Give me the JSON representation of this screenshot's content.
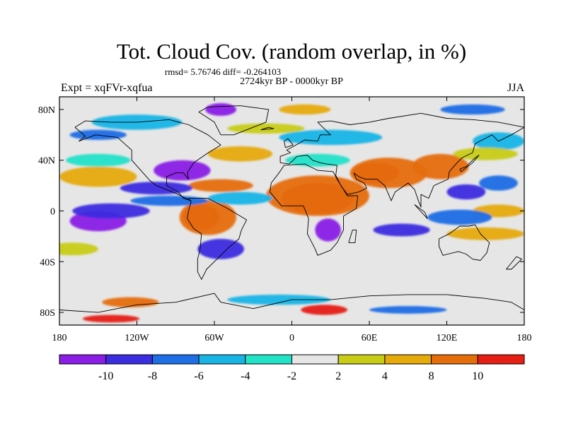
{
  "title": "Tot. Cloud Cov. (random overlap, in %)",
  "stats_line": "rmsd= 5.76746 diff= -0.264103",
  "experiment_label": "Expt = xqFVr-xqfua",
  "period_label": "2724kyr BP - 0000kyr BP",
  "season_label": "JJA",
  "map": {
    "lon_range": [
      -180,
      180
    ],
    "lat_range": [
      -90,
      90
    ],
    "lon_ticks": [
      {
        "value": -180,
        "label": "180"
      },
      {
        "value": -120,
        "label": "120W"
      },
      {
        "value": -60,
        "label": "60W"
      },
      {
        "value": 0,
        "label": "0"
      },
      {
        "value": 60,
        "label": "60E"
      },
      {
        "value": 120,
        "label": "120E"
      },
      {
        "value": 180,
        "label": "180"
      }
    ],
    "lat_ticks": [
      {
        "value": 80,
        "label": "80N"
      },
      {
        "value": 40,
        "label": "40N"
      },
      {
        "value": 0,
        "label": "0"
      },
      {
        "value": -40,
        "label": "40S"
      },
      {
        "value": -80,
        "label": "80S"
      }
    ],
    "background_color": "#e6e6e6"
  },
  "colorbar": {
    "boxes": [
      {
        "color": "#8a1ee6"
      },
      {
        "color": "#3b2de0"
      },
      {
        "color": "#1e6ee6"
      },
      {
        "color": "#19b4e6"
      },
      {
        "color": "#22e2c8"
      },
      {
        "color": "#e6e6e6"
      },
      {
        "color": "#c8cc14"
      },
      {
        "color": "#e6aa0a"
      },
      {
        "color": "#e66e0a"
      },
      {
        "color": "#e61e14"
      }
    ],
    "labels": [
      "-10",
      "-8",
      "-6",
      "-4",
      "-2",
      "2",
      "4",
      "8",
      "10"
    ]
  },
  "anomaly_regions": [
    {
      "level": 10,
      "lon": 20,
      "lat": 10,
      "rlon": 28,
      "rlat": 12
    },
    {
      "level": 8,
      "lon": 20,
      "lat": 12,
      "rlon": 40,
      "rlat": 16
    },
    {
      "level": 10,
      "lon": 65,
      "lat": 30,
      "rlon": 18,
      "rlat": 8
    },
    {
      "level": 8,
      "lon": 75,
      "lat": 30,
      "rlon": 30,
      "rlat": 12
    },
    {
      "level": 8,
      "lon": 115,
      "lat": 35,
      "rlon": 22,
      "rlat": 10
    },
    {
      "level": 10,
      "lon": -70,
      "lat": -5,
      "rlon": 14,
      "rlat": 10
    },
    {
      "level": 8,
      "lon": -65,
      "lat": -5,
      "rlon": 22,
      "rlat": 14
    },
    {
      "level": 8,
      "lon": -55,
      "lat": 20,
      "rlon": 25,
      "rlat": 5
    },
    {
      "level": 4,
      "lon": -150,
      "lat": 27,
      "rlon": 30,
      "rlat": 8
    },
    {
      "level": 4,
      "lon": -40,
      "lat": 45,
      "rlon": 25,
      "rlat": 6
    },
    {
      "level": 4,
      "lon": 160,
      "lat": 0,
      "rlon": 20,
      "rlat": 5
    },
    {
      "level": 4,
      "lon": 150,
      "lat": -18,
      "rlon": 30,
      "rlat": 5
    },
    {
      "level": 4,
      "lon": 10,
      "lat": 80,
      "rlon": 20,
      "rlat": 4
    },
    {
      "level": 8,
      "lon": -125,
      "lat": -72,
      "rlon": 22,
      "rlat": 4
    },
    {
      "level": 10,
      "lon": 25,
      "lat": -78,
      "rlon": 18,
      "rlat": 4
    },
    {
      "level": 10,
      "lon": -140,
      "lat": -85,
      "rlon": 22,
      "rlat": 3
    },
    {
      "level": -10,
      "lon": -150,
      "lat": -8,
      "rlon": 22,
      "rlat": 8
    },
    {
      "level": -8,
      "lon": -140,
      "lat": 0,
      "rlon": 30,
      "rlat": 6
    },
    {
      "level": -10,
      "lon": -85,
      "lat": 32,
      "rlon": 22,
      "rlat": 8
    },
    {
      "level": -8,
      "lon": -105,
      "lat": 18,
      "rlon": 28,
      "rlat": 5
    },
    {
      "level": -6,
      "lon": -95,
      "lat": 8,
      "rlon": 30,
      "rlat": 4
    },
    {
      "level": -10,
      "lon": 28,
      "lat": -15,
      "rlon": 10,
      "rlat": 9
    },
    {
      "level": -8,
      "lon": -55,
      "lat": -30,
      "rlon": 18,
      "rlat": 8
    },
    {
      "level": -8,
      "lon": 85,
      "lat": -15,
      "rlon": 22,
      "rlat": 5
    },
    {
      "level": -6,
      "lon": 130,
      "lat": -5,
      "rlon": 25,
      "rlat": 6
    },
    {
      "level": -8,
      "lon": 135,
      "lat": 15,
      "rlon": 15,
      "rlat": 6
    },
    {
      "level": -6,
      "lon": 160,
      "lat": 22,
      "rlon": 15,
      "rlat": 6
    },
    {
      "level": -10,
      "lon": -55,
      "lat": 80,
      "rlon": 12,
      "rlat": 5
    },
    {
      "level": -6,
      "lon": 140,
      "lat": 80,
      "rlon": 25,
      "rlat": 4
    },
    {
      "level": -6,
      "lon": -150,
      "lat": 60,
      "rlon": 22,
      "rlat": 4
    },
    {
      "level": -4,
      "lon": -120,
      "lat": 70,
      "rlon": 35,
      "rlat": 6
    },
    {
      "level": -4,
      "lon": -40,
      "lat": 10,
      "rlon": 25,
      "rlat": 5
    },
    {
      "level": -4,
      "lon": 30,
      "lat": 58,
      "rlon": 40,
      "rlat": 6
    },
    {
      "level": -4,
      "lon": 160,
      "lat": 55,
      "rlon": 20,
      "rlat": 7
    },
    {
      "level": -4,
      "lon": -10,
      "lat": -70,
      "rlon": 40,
      "rlat": 4
    },
    {
      "level": -6,
      "lon": 90,
      "lat": -78,
      "rlon": 30,
      "rlat": 3
    },
    {
      "level": -2,
      "lon": -150,
      "lat": 40,
      "rlon": 25,
      "rlat": 5
    },
    {
      "level": -2,
      "lon": 20,
      "lat": 40,
      "rlon": 25,
      "rlat": 5
    },
    {
      "level": 2,
      "lon": -170,
      "lat": -30,
      "rlon": 20,
      "rlat": 5
    },
    {
      "level": 2,
      "lon": 150,
      "lat": 45,
      "rlon": 25,
      "rlat": 5
    },
    {
      "level": 2,
      "lon": -20,
      "lat": 65,
      "rlon": 30,
      "rlat": 4
    }
  ],
  "coastlines": [
    [
      [
        -168,
        66
      ],
      [
        -160,
        71
      ],
      [
        -140,
        70
      ],
      [
        -120,
        70
      ],
      [
        -95,
        72
      ],
      [
        -80,
        68
      ],
      [
        -65,
        60
      ],
      [
        -55,
        52
      ],
      [
        -66,
        45
      ],
      [
        -76,
        38
      ],
      [
        -81,
        30
      ],
      [
        -80,
        25
      ],
      [
        -84,
        30
      ],
      [
        -90,
        30
      ],
      [
        -97,
        27
      ],
      [
        -97,
        20
      ],
      [
        -88,
        15
      ],
      [
        -84,
        10
      ],
      [
        -78,
        8
      ],
      [
        -90,
        14
      ],
      [
        -105,
        20
      ],
      [
        -110,
        24
      ],
      [
        -117,
        32
      ],
      [
        -124,
        40
      ],
      [
        -124,
        48
      ],
      [
        -135,
        58
      ],
      [
        -152,
        60
      ],
      [
        -165,
        55
      ],
      [
        -160,
        59
      ],
      [
        -168,
        66
      ]
    ],
    [
      [
        -80,
        10
      ],
      [
        -65,
        10
      ],
      [
        -50,
        2
      ],
      [
        -35,
        -7
      ],
      [
        -39,
        -15
      ],
      [
        -41,
        -22
      ],
      [
        -48,
        -28
      ],
      [
        -58,
        -38
      ],
      [
        -66,
        -46
      ],
      [
        -70,
        -54
      ],
      [
        -73,
        -48
      ],
      [
        -73,
        -38
      ],
      [
        -71,
        -30
      ],
      [
        -70,
        -18
      ],
      [
        -76,
        -14
      ],
      [
        -81,
        -6
      ],
      [
        -80,
        0
      ],
      [
        -78,
        7
      ],
      [
        -80,
        10
      ]
    ],
    [
      [
        -17,
        15
      ],
      [
        -16,
        22
      ],
      [
        -10,
        30
      ],
      [
        -6,
        36
      ],
      [
        10,
        37
      ],
      [
        20,
        32
      ],
      [
        32,
        31
      ],
      [
        35,
        25
      ],
      [
        43,
        12
      ],
      [
        51,
        12
      ],
      [
        50,
        2
      ],
      [
        40,
        -4
      ],
      [
        40,
        -15
      ],
      [
        35,
        -25
      ],
      [
        30,
        -31
      ],
      [
        20,
        -35
      ],
      [
        18,
        -30
      ],
      [
        12,
        -18
      ],
      [
        13,
        -6
      ],
      [
        9,
        4
      ],
      [
        -8,
        4
      ],
      [
        -17,
        15
      ]
    ],
    [
      [
        -9,
        38
      ],
      [
        -9,
        43
      ],
      [
        -1,
        46
      ],
      [
        -4,
        48
      ],
      [
        5,
        53
      ],
      [
        10,
        56
      ],
      [
        20,
        55
      ],
      [
        22,
        60
      ],
      [
        30,
        60
      ],
      [
        25,
        65
      ],
      [
        20,
        70
      ],
      [
        30,
        71
      ],
      [
        45,
        68
      ],
      [
        60,
        70
      ],
      [
        75,
        73
      ],
      [
        100,
        77
      ],
      [
        120,
        73
      ],
      [
        140,
        72
      ],
      [
        160,
        70
      ],
      [
        180,
        66
      ],
      [
        170,
        60
      ],
      [
        160,
        55
      ],
      [
        155,
        60
      ],
      [
        142,
        53
      ],
      [
        140,
        46
      ],
      [
        132,
        42
      ],
      [
        128,
        38
      ],
      [
        122,
        31
      ],
      [
        121,
        25
      ],
      [
        110,
        20
      ],
      [
        106,
        10
      ],
      [
        100,
        13
      ],
      [
        100,
        3
      ],
      [
        98,
        8
      ],
      [
        95,
        17
      ],
      [
        90,
        22
      ],
      [
        80,
        15
      ],
      [
        77,
        8
      ],
      [
        72,
        20
      ],
      [
        66,
        25
      ],
      [
        57,
        25
      ],
      [
        52,
        27
      ],
      [
        48,
        30
      ],
      [
        50,
        25
      ],
      [
        56,
        22
      ],
      [
        58,
        18
      ],
      [
        52,
        15
      ],
      [
        43,
        13
      ],
      [
        38,
        20
      ],
      [
        34,
        28
      ],
      [
        35,
        36
      ],
      [
        27,
        37
      ],
      [
        22,
        38
      ],
      [
        16,
        40
      ],
      [
        12,
        44
      ],
      [
        4,
        43
      ],
      [
        -2,
        37
      ],
      [
        -9,
        38
      ]
    ],
    [
      [
        114,
        -22
      ],
      [
        122,
        -18
      ],
      [
        130,
        -12
      ],
      [
        137,
        -12
      ],
      [
        142,
        -11
      ],
      [
        146,
        -18
      ],
      [
        153,
        -25
      ],
      [
        151,
        -33
      ],
      [
        146,
        -39
      ],
      [
        140,
        -38
      ],
      [
        135,
        -34
      ],
      [
        129,
        -32
      ],
      [
        117,
        -35
      ],
      [
        114,
        -28
      ],
      [
        114,
        -22
      ]
    ],
    [
      [
        -55,
        60
      ],
      [
        -45,
        60
      ],
      [
        -20,
        70
      ],
      [
        -18,
        80
      ],
      [
        -40,
        83
      ],
      [
        -65,
        82
      ],
      [
        -72,
        78
      ],
      [
        -60,
        70
      ],
      [
        -55,
        60
      ]
    ],
    [
      [
        44,
        -25
      ],
      [
        47,
        -15
      ],
      [
        50,
        -15
      ],
      [
        49,
        -25
      ],
      [
        44,
        -25
      ]
    ],
    [
      [
        95,
        5
      ],
      [
        105,
        -6
      ],
      [
        103,
        -1
      ],
      [
        95,
        5
      ]
    ],
    [
      [
        130,
        33
      ],
      [
        135,
        35
      ],
      [
        141,
        41
      ],
      [
        145,
        44
      ],
      [
        140,
        38
      ],
      [
        131,
        31
      ],
      [
        130,
        33
      ]
    ],
    [
      [
        -5,
        50
      ],
      [
        1,
        52
      ],
      [
        -3,
        57
      ],
      [
        -6,
        55
      ],
      [
        -5,
        50
      ]
    ],
    [
      [
        -180,
        -78
      ],
      [
        -150,
        -80
      ],
      [
        -120,
        -74
      ],
      [
        -90,
        -72
      ],
      [
        -60,
        -65
      ],
      [
        -55,
        -72
      ],
      [
        -30,
        -77
      ],
      [
        0,
        -70
      ],
      [
        30,
        -70
      ],
      [
        60,
        -67
      ],
      [
        90,
        -66
      ],
      [
        120,
        -66
      ],
      [
        150,
        -69
      ],
      [
        170,
        -72
      ],
      [
        180,
        -78
      ]
    ],
    [
      [
        -24,
        64
      ],
      [
        -14,
        65
      ],
      [
        -18,
        66
      ],
      [
        -24,
        64
      ]
    ],
    [
      [
        166,
        -46
      ],
      [
        174,
        -36
      ],
      [
        178,
        -38
      ],
      [
        170,
        -46
      ],
      [
        166,
        -46
      ]
    ]
  ]
}
